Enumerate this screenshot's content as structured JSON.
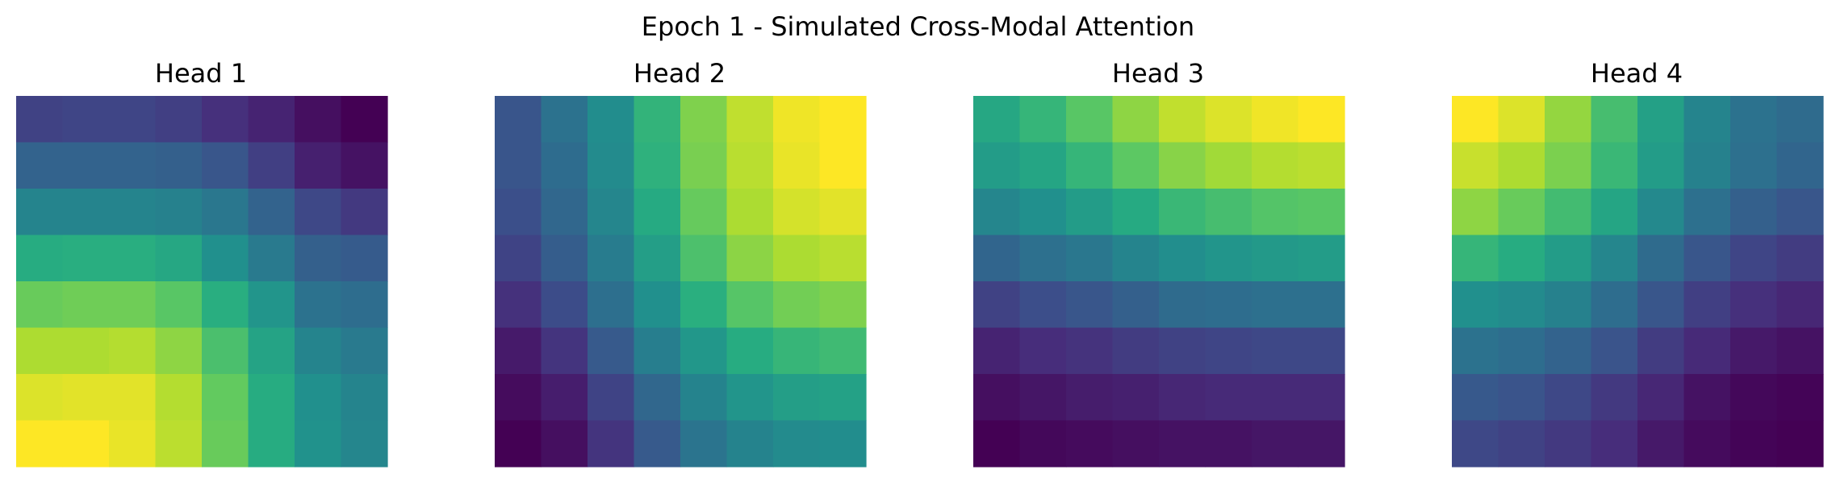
{
  "figure": {
    "suptitle": "Epoch 1 - Simulated Cross-Modal Attention",
    "colormap": "viridis"
  },
  "chart_data": [
    {
      "type": "heatmap",
      "title": "Head 1",
      "colormap": "viridis",
      "axes": "off",
      "values": [
        [
          0.2,
          0.21,
          0.21,
          0.19,
          0.14,
          0.1,
          0.04,
          0.0
        ],
        [
          0.32,
          0.32,
          0.32,
          0.31,
          0.27,
          0.19,
          0.09,
          0.05
        ],
        [
          0.45,
          0.45,
          0.45,
          0.44,
          0.4,
          0.32,
          0.22,
          0.17
        ],
        [
          0.62,
          0.63,
          0.63,
          0.6,
          0.5,
          0.41,
          0.31,
          0.29
        ],
        [
          0.77,
          0.78,
          0.78,
          0.74,
          0.63,
          0.52,
          0.38,
          0.36
        ],
        [
          0.88,
          0.88,
          0.89,
          0.83,
          0.71,
          0.58,
          0.45,
          0.41
        ],
        [
          0.95,
          0.96,
          0.96,
          0.89,
          0.76,
          0.62,
          0.5,
          0.45
        ],
        [
          1.0,
          1.0,
          0.97,
          0.9,
          0.77,
          0.62,
          0.51,
          0.46
        ]
      ]
    },
    {
      "type": "heatmap",
      "title": "Head 2",
      "colormap": "viridis",
      "axes": "off",
      "values": [
        [
          0.26,
          0.37,
          0.48,
          0.64,
          0.79,
          0.89,
          0.96,
          0.98
        ],
        [
          0.26,
          0.35,
          0.47,
          0.63,
          0.78,
          0.88,
          0.95,
          0.98
        ],
        [
          0.24,
          0.33,
          0.45,
          0.6,
          0.75,
          0.86,
          0.92,
          0.94
        ],
        [
          0.2,
          0.29,
          0.41,
          0.55,
          0.7,
          0.81,
          0.86,
          0.88
        ],
        [
          0.14,
          0.23,
          0.36,
          0.49,
          0.62,
          0.72,
          0.77,
          0.79
        ],
        [
          0.07,
          0.15,
          0.28,
          0.42,
          0.52,
          0.61,
          0.65,
          0.67
        ],
        [
          0.03,
          0.08,
          0.2,
          0.33,
          0.44,
          0.51,
          0.55,
          0.56
        ],
        [
          0.0,
          0.04,
          0.15,
          0.28,
          0.38,
          0.44,
          0.47,
          0.48
        ]
      ]
    },
    {
      "type": "heatmap",
      "title": "Head 3",
      "colormap": "viridis",
      "axes": "off",
      "values": [
        [
          0.6,
          0.66,
          0.74,
          0.83,
          0.91,
          0.95,
          0.98,
          1.0
        ],
        [
          0.55,
          0.59,
          0.66,
          0.75,
          0.82,
          0.86,
          0.89,
          0.9
        ],
        [
          0.46,
          0.5,
          0.55,
          0.61,
          0.67,
          0.7,
          0.73,
          0.74
        ],
        [
          0.33,
          0.37,
          0.4,
          0.45,
          0.49,
          0.52,
          0.54,
          0.55
        ],
        [
          0.2,
          0.24,
          0.27,
          0.31,
          0.35,
          0.36,
          0.37,
          0.37
        ],
        [
          0.1,
          0.13,
          0.15,
          0.18,
          0.2,
          0.21,
          0.22,
          0.22
        ],
        [
          0.04,
          0.06,
          0.08,
          0.09,
          0.11,
          0.12,
          0.12,
          0.12
        ],
        [
          0.0,
          0.02,
          0.03,
          0.04,
          0.05,
          0.05,
          0.06,
          0.06
        ]
      ]
    },
    {
      "type": "heatmap",
      "title": "Head 4",
      "colormap": "viridis",
      "axes": "off",
      "values": [
        [
          1.0,
          0.95,
          0.84,
          0.7,
          0.57,
          0.45,
          0.38,
          0.35
        ],
        [
          0.92,
          0.88,
          0.8,
          0.67,
          0.55,
          0.44,
          0.37,
          0.33
        ],
        [
          0.83,
          0.77,
          0.69,
          0.59,
          0.47,
          0.37,
          0.31,
          0.27
        ],
        [
          0.66,
          0.62,
          0.55,
          0.46,
          0.35,
          0.27,
          0.21,
          0.18
        ],
        [
          0.5,
          0.48,
          0.44,
          0.36,
          0.27,
          0.19,
          0.14,
          0.11
        ],
        [
          0.38,
          0.36,
          0.32,
          0.26,
          0.18,
          0.12,
          0.07,
          0.05
        ],
        [
          0.28,
          0.26,
          0.22,
          0.17,
          0.11,
          0.05,
          0.02,
          0.01
        ],
        [
          0.22,
          0.2,
          0.17,
          0.13,
          0.07,
          0.03,
          0.01,
          0.0
        ]
      ]
    }
  ]
}
